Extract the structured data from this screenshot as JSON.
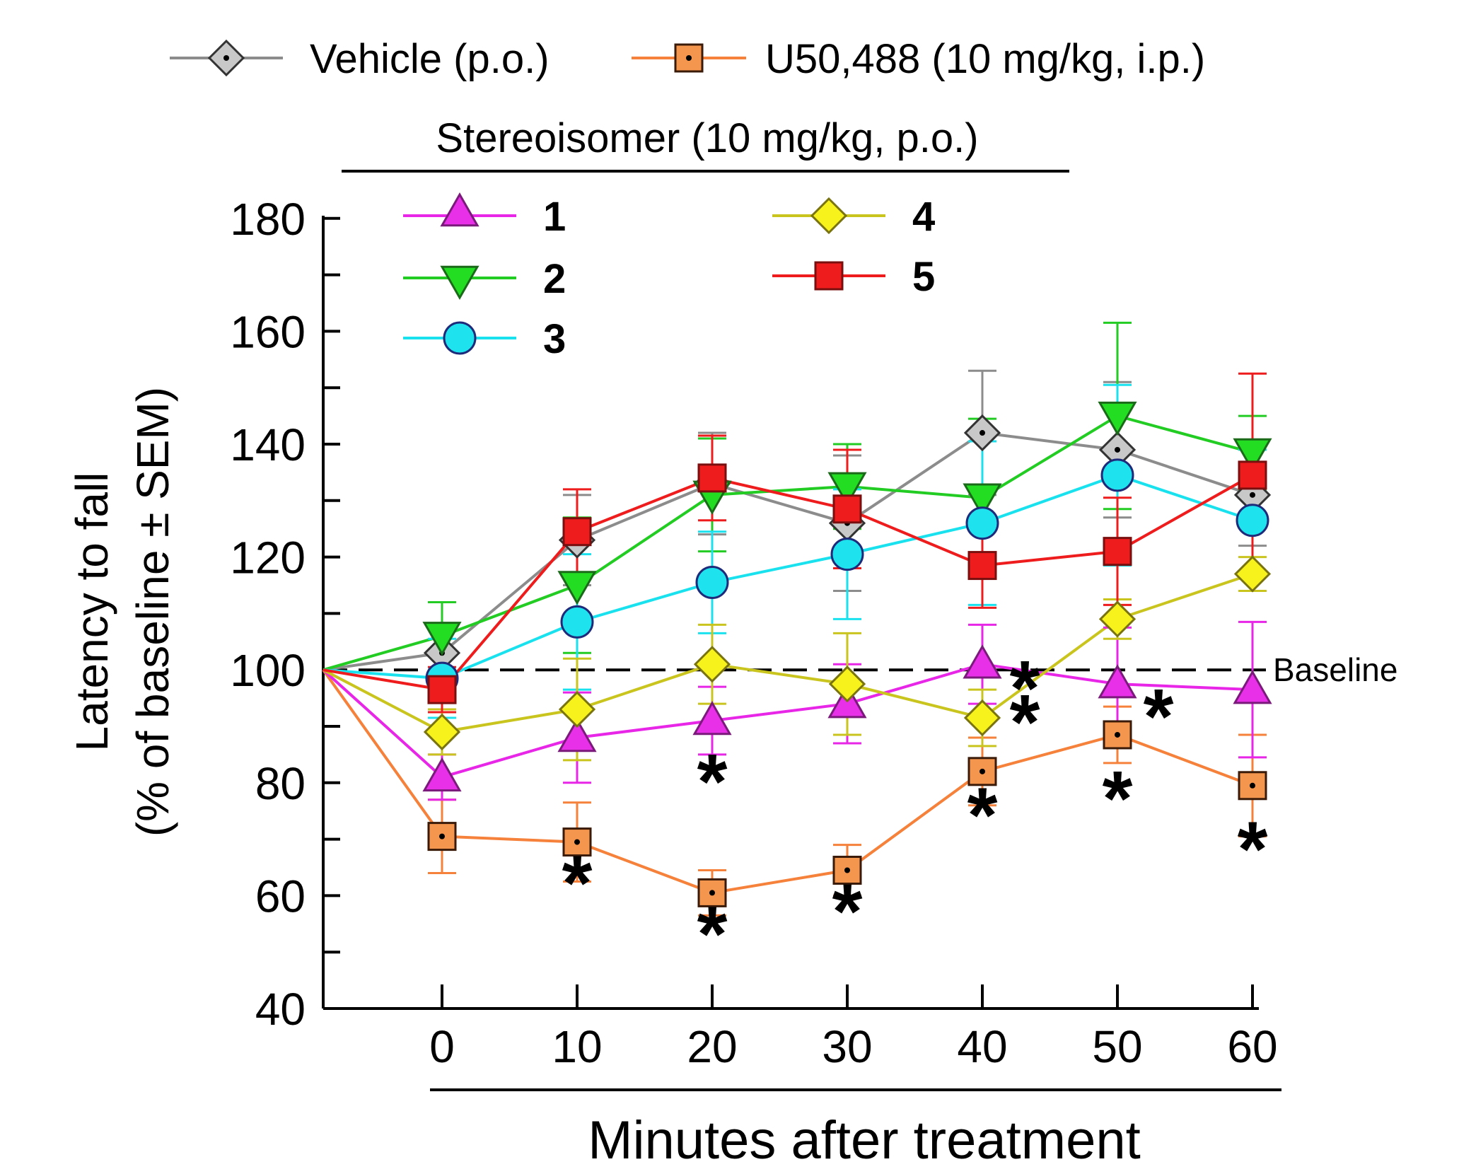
{
  "chart_data": {
    "type": "line",
    "title": "",
    "xlabel": "Minutes after treatment",
    "ylabel": [
      "Latency to fall",
      "(% of baseline ± SEM)"
    ],
    "x": [
      0,
      10,
      20,
      30,
      40,
      50,
      60
    ],
    "x_tick_labels": [
      "0",
      "10",
      "20",
      "30",
      "40",
      "50",
      "60"
    ],
    "ylim": [
      40,
      180
    ],
    "y_ticks": [
      40,
      60,
      80,
      100,
      120,
      140,
      160,
      180
    ],
    "y_tick_labels": [
      "40",
      "60",
      "80",
      "100",
      "120",
      "140",
      "160",
      "180"
    ],
    "baseline": {
      "value": 100,
      "label": "Baseline"
    },
    "legend_group_title": "Stereoisomer (10 mg/kg, p.o.)",
    "series": [
      {
        "name": "Vehicle (p.o.)",
        "legend_label": "Vehicle (p.o.)",
        "color": "#8c8c8c",
        "fill": "#c8c8c8",
        "marker": "diamond-dot",
        "values": [
          103,
          123,
          133,
          126,
          142,
          139,
          131
        ],
        "errors": [
          5,
          8,
          9,
          12,
          11,
          12,
          9
        ]
      },
      {
        "name": "U50,488 (10 mg/kg, i.p.)",
        "legend_label": "U50,488 (10 mg/kg, i.p.)",
        "color": "#f5813a",
        "fill": "#f5964e",
        "marker": "square-dot",
        "values": [
          70.5,
          69.5,
          60.5,
          64.5,
          82,
          88.5,
          79.5
        ],
        "errors": [
          6.5,
          7,
          4,
          4.5,
          6,
          5,
          9
        ]
      },
      {
        "name": "1",
        "legend_label": "1",
        "color": "#e826e8",
        "fill": "#e830e8",
        "marker": "triangle-up",
        "values": [
          81,
          88,
          91,
          94,
          101,
          97.5,
          96.5
        ],
        "errors": [
          4,
          8,
          6,
          7,
          7,
          10,
          12
        ]
      },
      {
        "name": "2",
        "legend_label": "2",
        "color": "#22cc22",
        "fill": "#22dd22",
        "marker": "triangle-down",
        "values": [
          106,
          115,
          131,
          132.5,
          130.5,
          145,
          138.5
        ],
        "errors": [
          6,
          12,
          10,
          7.5,
          14,
          16.5,
          6.5
        ]
      },
      {
        "name": "3",
        "legend_label": "3",
        "color": "#19e2ee",
        "fill": "#1ee3ee",
        "marker": "circle",
        "values": [
          98.5,
          108.5,
          115.5,
          120.5,
          126,
          134.5,
          126.5
        ],
        "errors": [
          7,
          12,
          9,
          11.5,
          14.5,
          16,
          12.5
        ]
      },
      {
        "name": "4",
        "legend_label": "4",
        "color": "#c9c51e",
        "fill": "#f7f21c",
        "marker": "diamond",
        "values": [
          89,
          93,
          101,
          97.5,
          91.5,
          109,
          117
        ],
        "errors": [
          4,
          9,
          7,
          9,
          5,
          3.5,
          3
        ]
      },
      {
        "name": "5",
        "legend_label": "5",
        "color": "#ee1c1c",
        "fill": "#ee1c1c",
        "marker": "square",
        "values": [
          96.5,
          124.5,
          134,
          128.5,
          118.5,
          121,
          134.5
        ],
        "errors": [
          4,
          7.5,
          7.5,
          10.5,
          7.5,
          9.5,
          18
        ]
      }
    ],
    "annotations": [
      {
        "text": "*",
        "x": 10,
        "y": 64
      },
      {
        "text": "*",
        "x": 20,
        "y": 82
      },
      {
        "text": "*",
        "x": 20,
        "y": 55
      },
      {
        "text": "*",
        "x": 30,
        "y": 59
      },
      {
        "text": "*",
        "x": 40,
        "y": 98.5
      },
      {
        "text": "*",
        "x": 40,
        "y": 92.5
      },
      {
        "text": "*",
        "x": 40,
        "y": 76
      },
      {
        "text": "*",
        "x": 50,
        "y": 93.5
      },
      {
        "text": "*",
        "x": 50,
        "y": 79
      },
      {
        "text": "*",
        "x": 60,
        "y": 70
      }
    ]
  }
}
